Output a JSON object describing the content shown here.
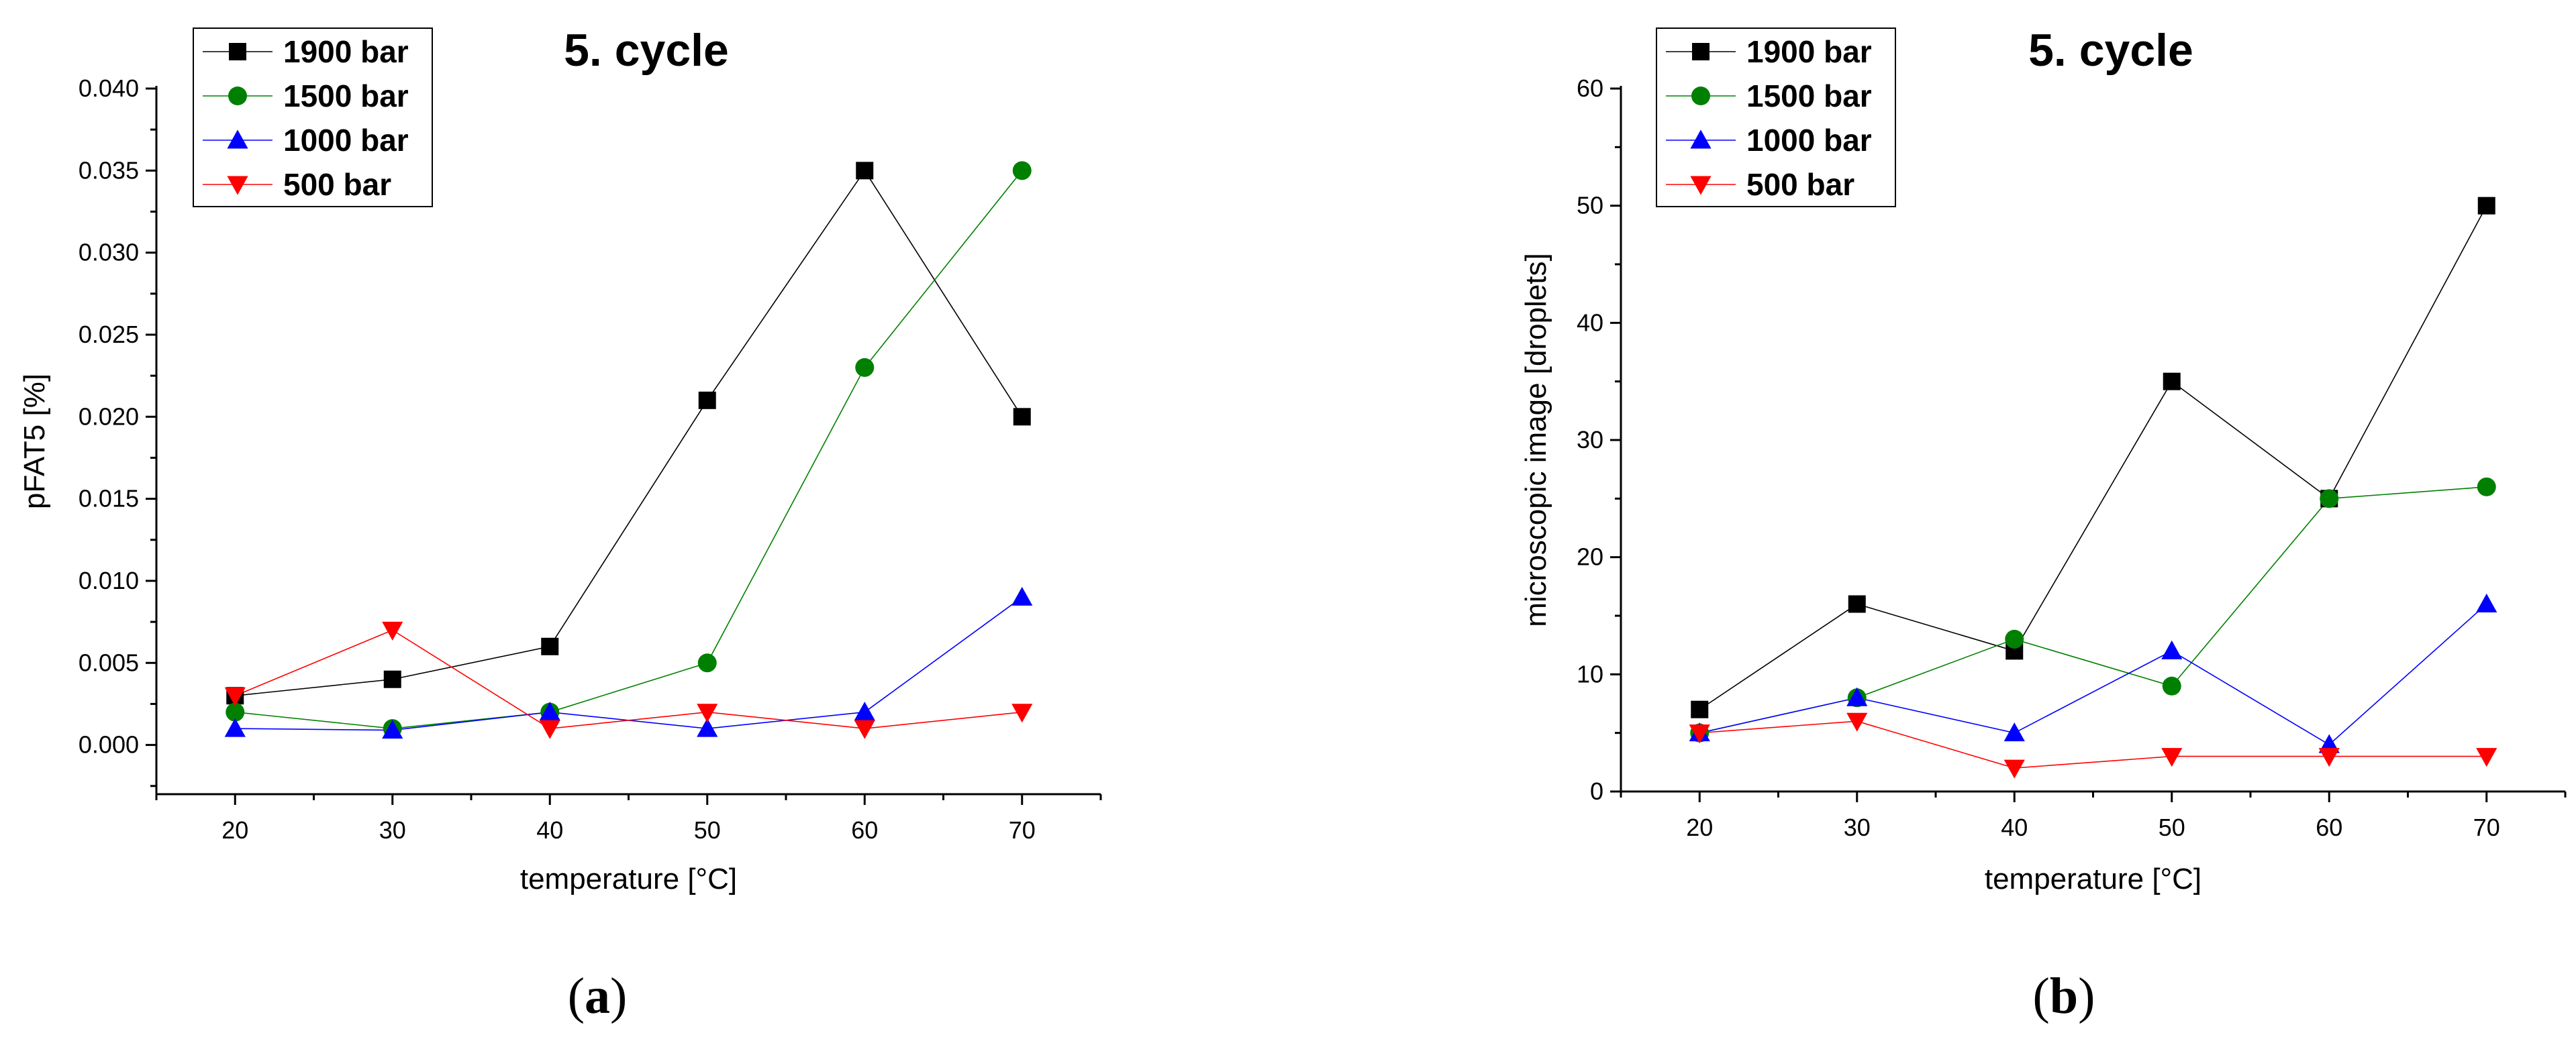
{
  "chart_data": [
    {
      "type": "line",
      "title": "5. cycle",
      "panel_label": "a",
      "xlabel": "temperature [°C]",
      "ylabel": "pFAT5 [%]",
      "xlim": [
        15,
        75
      ],
      "ylim": [
        -0.003,
        0.04
      ],
      "x": [
        20,
        30,
        40,
        50,
        60,
        70
      ],
      "xticks": [
        20,
        30,
        40,
        50,
        60,
        70
      ],
      "yticks": [
        0.0,
        0.005,
        0.01,
        0.015,
        0.02,
        0.025,
        0.03,
        0.035,
        0.04
      ],
      "ytick_labels": [
        "0.000",
        "0.005",
        "0.010",
        "0.015",
        "0.020",
        "0.025",
        "0.030",
        "0.035",
        "0.040"
      ],
      "legend_position": "top-left",
      "series": [
        {
          "name": "1900 bar",
          "color": "#000000",
          "marker": "square",
          "values": [
            0.003,
            0.004,
            0.006,
            0.021,
            0.035,
            0.02
          ]
        },
        {
          "name": "1500 bar",
          "color": "#008000",
          "marker": "circle",
          "values": [
            0.002,
            0.001,
            0.002,
            0.005,
            0.023,
            0.035
          ]
        },
        {
          "name": "1000 bar",
          "color": "#0000ff",
          "marker": "triangle-up",
          "values": [
            0.001,
            0.0009,
            0.002,
            0.001,
            0.002,
            0.009
          ]
        },
        {
          "name": "500 bar",
          "color": "#ff0000",
          "marker": "triangle-down",
          "values": [
            0.003,
            0.007,
            0.001,
            0.002,
            0.001,
            0.002
          ]
        }
      ]
    },
    {
      "type": "line",
      "title": "5. cycle",
      "panel_label": "b",
      "xlabel": "temperature [°C]",
      "ylabel": "microscopic image [droplets]",
      "xlim": [
        15,
        75
      ],
      "ylim": [
        0,
        60
      ],
      "x": [
        20,
        30,
        40,
        50,
        60,
        70
      ],
      "xticks": [
        20,
        30,
        40,
        50,
        60,
        70
      ],
      "yticks": [
        0,
        10,
        20,
        30,
        40,
        50,
        60
      ],
      "ytick_labels": [
        "0",
        "10",
        "20",
        "30",
        "40",
        "50",
        "60"
      ],
      "legend_position": "top-left",
      "series": [
        {
          "name": "1900 bar",
          "color": "#000000",
          "marker": "square",
          "values": [
            7,
            16,
            12,
            35,
            25,
            50
          ]
        },
        {
          "name": "1500 bar",
          "color": "#008000",
          "marker": "circle",
          "values": [
            5,
            8,
            13,
            9,
            25,
            26
          ]
        },
        {
          "name": "1000 bar",
          "color": "#0000ff",
          "marker": "triangle-up",
          "values": [
            5,
            8,
            5,
            12,
            4,
            16
          ]
        },
        {
          "name": "500 bar",
          "color": "#ff0000",
          "marker": "triangle-down",
          "values": [
            5,
            6,
            2,
            3,
            3,
            3
          ]
        }
      ]
    }
  ]
}
